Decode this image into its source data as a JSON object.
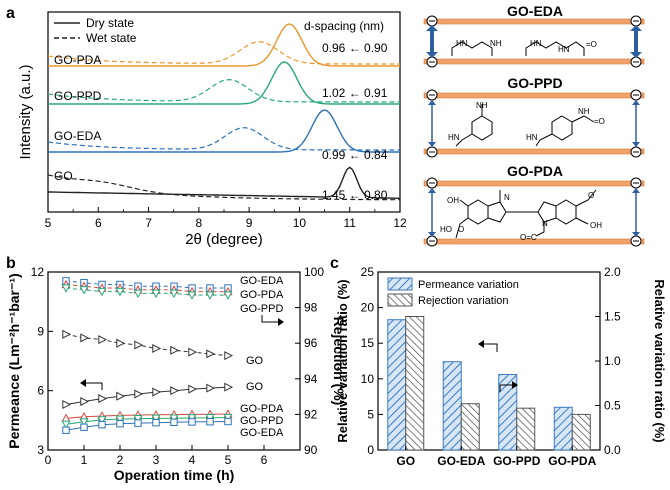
{
  "panel_labels": {
    "a": "a",
    "b": "b",
    "c": "c"
  },
  "chart_data": [
    {
      "type": "line",
      "panel": "a",
      "xlabel": "2θ (degree)",
      "ylabel": "Intensity (a.u.)",
      "xlim": [
        5,
        12
      ],
      "xticks": [
        "5",
        "6",
        "7",
        "8",
        "9",
        "10",
        "11",
        "12"
      ],
      "legend": [
        "Dry state",
        "Wet state"
      ],
      "legend_position": "top-left",
      "dspacing_header": "d-spacing (nm)",
      "series": [
        {
          "name": "GO-PDA",
          "color": "#e8962d",
          "label": "GO-PDA",
          "dry_peak_2theta": 9.8,
          "wet_peak_2theta": 9.2,
          "dspacing": "0.96 ← 0.90"
        },
        {
          "name": "GO-PPD",
          "color": "#2aa87a",
          "label": "GO-PPD",
          "dry_peak_2theta": 9.7,
          "wet_peak_2theta": 8.6,
          "dspacing": "1.02 ← 0.91"
        },
        {
          "name": "GO-EDA",
          "color": "#2e72b8",
          "label": "GO-EDA",
          "dry_peak_2theta": 10.5,
          "wet_peak_2theta": 8.9,
          "dspacing": "0.99 ← 0.84"
        },
        {
          "name": "GO",
          "color": "#222222",
          "label": "GO",
          "dry_peak_2theta": 11.0,
          "wet_peak_2theta": 6.1,
          "dspacing": "1.45 ← 0.80"
        }
      ]
    },
    {
      "type": "line",
      "panel": "b",
      "xlabel": "Operation time (h)",
      "ylabel": "Permeance (Lm⁻²h⁻¹bar⁻¹)",
      "y2label": "Rejection (%)",
      "xlim": [
        0,
        7
      ],
      "ylim": [
        3,
        12
      ],
      "y2lim": [
        90,
        100
      ],
      "xticks": [
        "0",
        "1",
        "2",
        "3",
        "4",
        "5",
        "6"
      ],
      "yticks": [
        "3",
        "6",
        "9",
        "12"
      ],
      "y2ticks": [
        "90",
        "92",
        "94",
        "96",
        "98",
        "100"
      ],
      "x": [
        0.5,
        1.0,
        1.5,
        2.0,
        2.5,
        3.0,
        3.5,
        4.0,
        4.5,
        5.0
      ],
      "rejection_series": [
        {
          "name": "GO-EDA",
          "color": "#2e72b8",
          "marker": "square",
          "values": [
            99.5,
            99.4,
            99.3,
            99.3,
            99.2,
            99.2,
            99.2,
            99.1,
            99.1,
            99.1
          ]
        },
        {
          "name": "GO-PDA",
          "color": "#d8473e",
          "marker": "triangle-up",
          "values": [
            99.3,
            99.2,
            99.1,
            99.1,
            99.0,
            99.0,
            99.0,
            98.9,
            98.9,
            98.9
          ]
        },
        {
          "name": "GO-PPD",
          "color": "#2aa87a",
          "marker": "triangle-down",
          "values": [
            99.1,
            99.0,
            98.9,
            98.9,
            98.8,
            98.8,
            98.8,
            98.7,
            98.7,
            98.7
          ]
        },
        {
          "name": "GO",
          "color": "#333333",
          "marker": "triangle-right",
          "values": [
            96.5,
            96.3,
            96.2,
            96.0,
            95.9,
            95.7,
            95.6,
            95.5,
            95.4,
            95.3
          ]
        }
      ],
      "permeance_series": [
        {
          "name": "GO",
          "color": "#333333",
          "marker": "triangle-right",
          "values": [
            5.3,
            5.45,
            5.6,
            5.72,
            5.83,
            5.93,
            6.0,
            6.08,
            6.13,
            6.18
          ]
        },
        {
          "name": "GO-PDA",
          "color": "#d8473e",
          "marker": "triangle-up",
          "values": [
            4.6,
            4.68,
            4.72,
            4.75,
            4.77,
            4.78,
            4.79,
            4.8,
            4.81,
            4.82
          ]
        },
        {
          "name": "GO-PPD",
          "color": "#2aa87a",
          "marker": "triangle-down",
          "values": [
            4.3,
            4.42,
            4.52,
            4.56,
            4.58,
            4.6,
            4.61,
            4.62,
            4.63,
            4.64
          ]
        },
        {
          "name": "GO-EDA",
          "color": "#2e72b8",
          "marker": "square",
          "values": [
            4.0,
            4.15,
            4.28,
            4.33,
            4.36,
            4.38,
            4.4,
            4.42,
            4.43,
            4.44
          ]
        }
      ]
    },
    {
      "type": "bar",
      "panel": "c",
      "ylabel": "Relative variation ratio (%)",
      "y2label": "Relative variation ratio (%)",
      "categories": [
        "GO",
        "GO-EDA",
        "GO-PPD",
        "GO-PDA"
      ],
      "ylim": [
        0,
        25
      ],
      "y2lim": [
        0,
        2.0
      ],
      "yticks": [
        "0",
        "5",
        "10",
        "15",
        "20",
        "25"
      ],
      "y2ticks": [
        "0.0",
        "0.5",
        "1.0",
        "1.5",
        "2.0"
      ],
      "legend_position": "top-center",
      "series": [
        {
          "name": "Permeance variation",
          "color": "#3b7bc4",
          "axis": "left",
          "values": [
            18.3,
            12.4,
            10.6,
            6.0
          ]
        },
        {
          "name": "Rejection variation",
          "color": "#555555",
          "axis": "right",
          "values": [
            1.5,
            0.52,
            0.47,
            0.4
          ]
        }
      ]
    }
  ],
  "schematics": [
    {
      "title": "GO-EDA"
    },
    {
      "title": "GO-PPD"
    },
    {
      "title": "GO-PDA"
    }
  ]
}
